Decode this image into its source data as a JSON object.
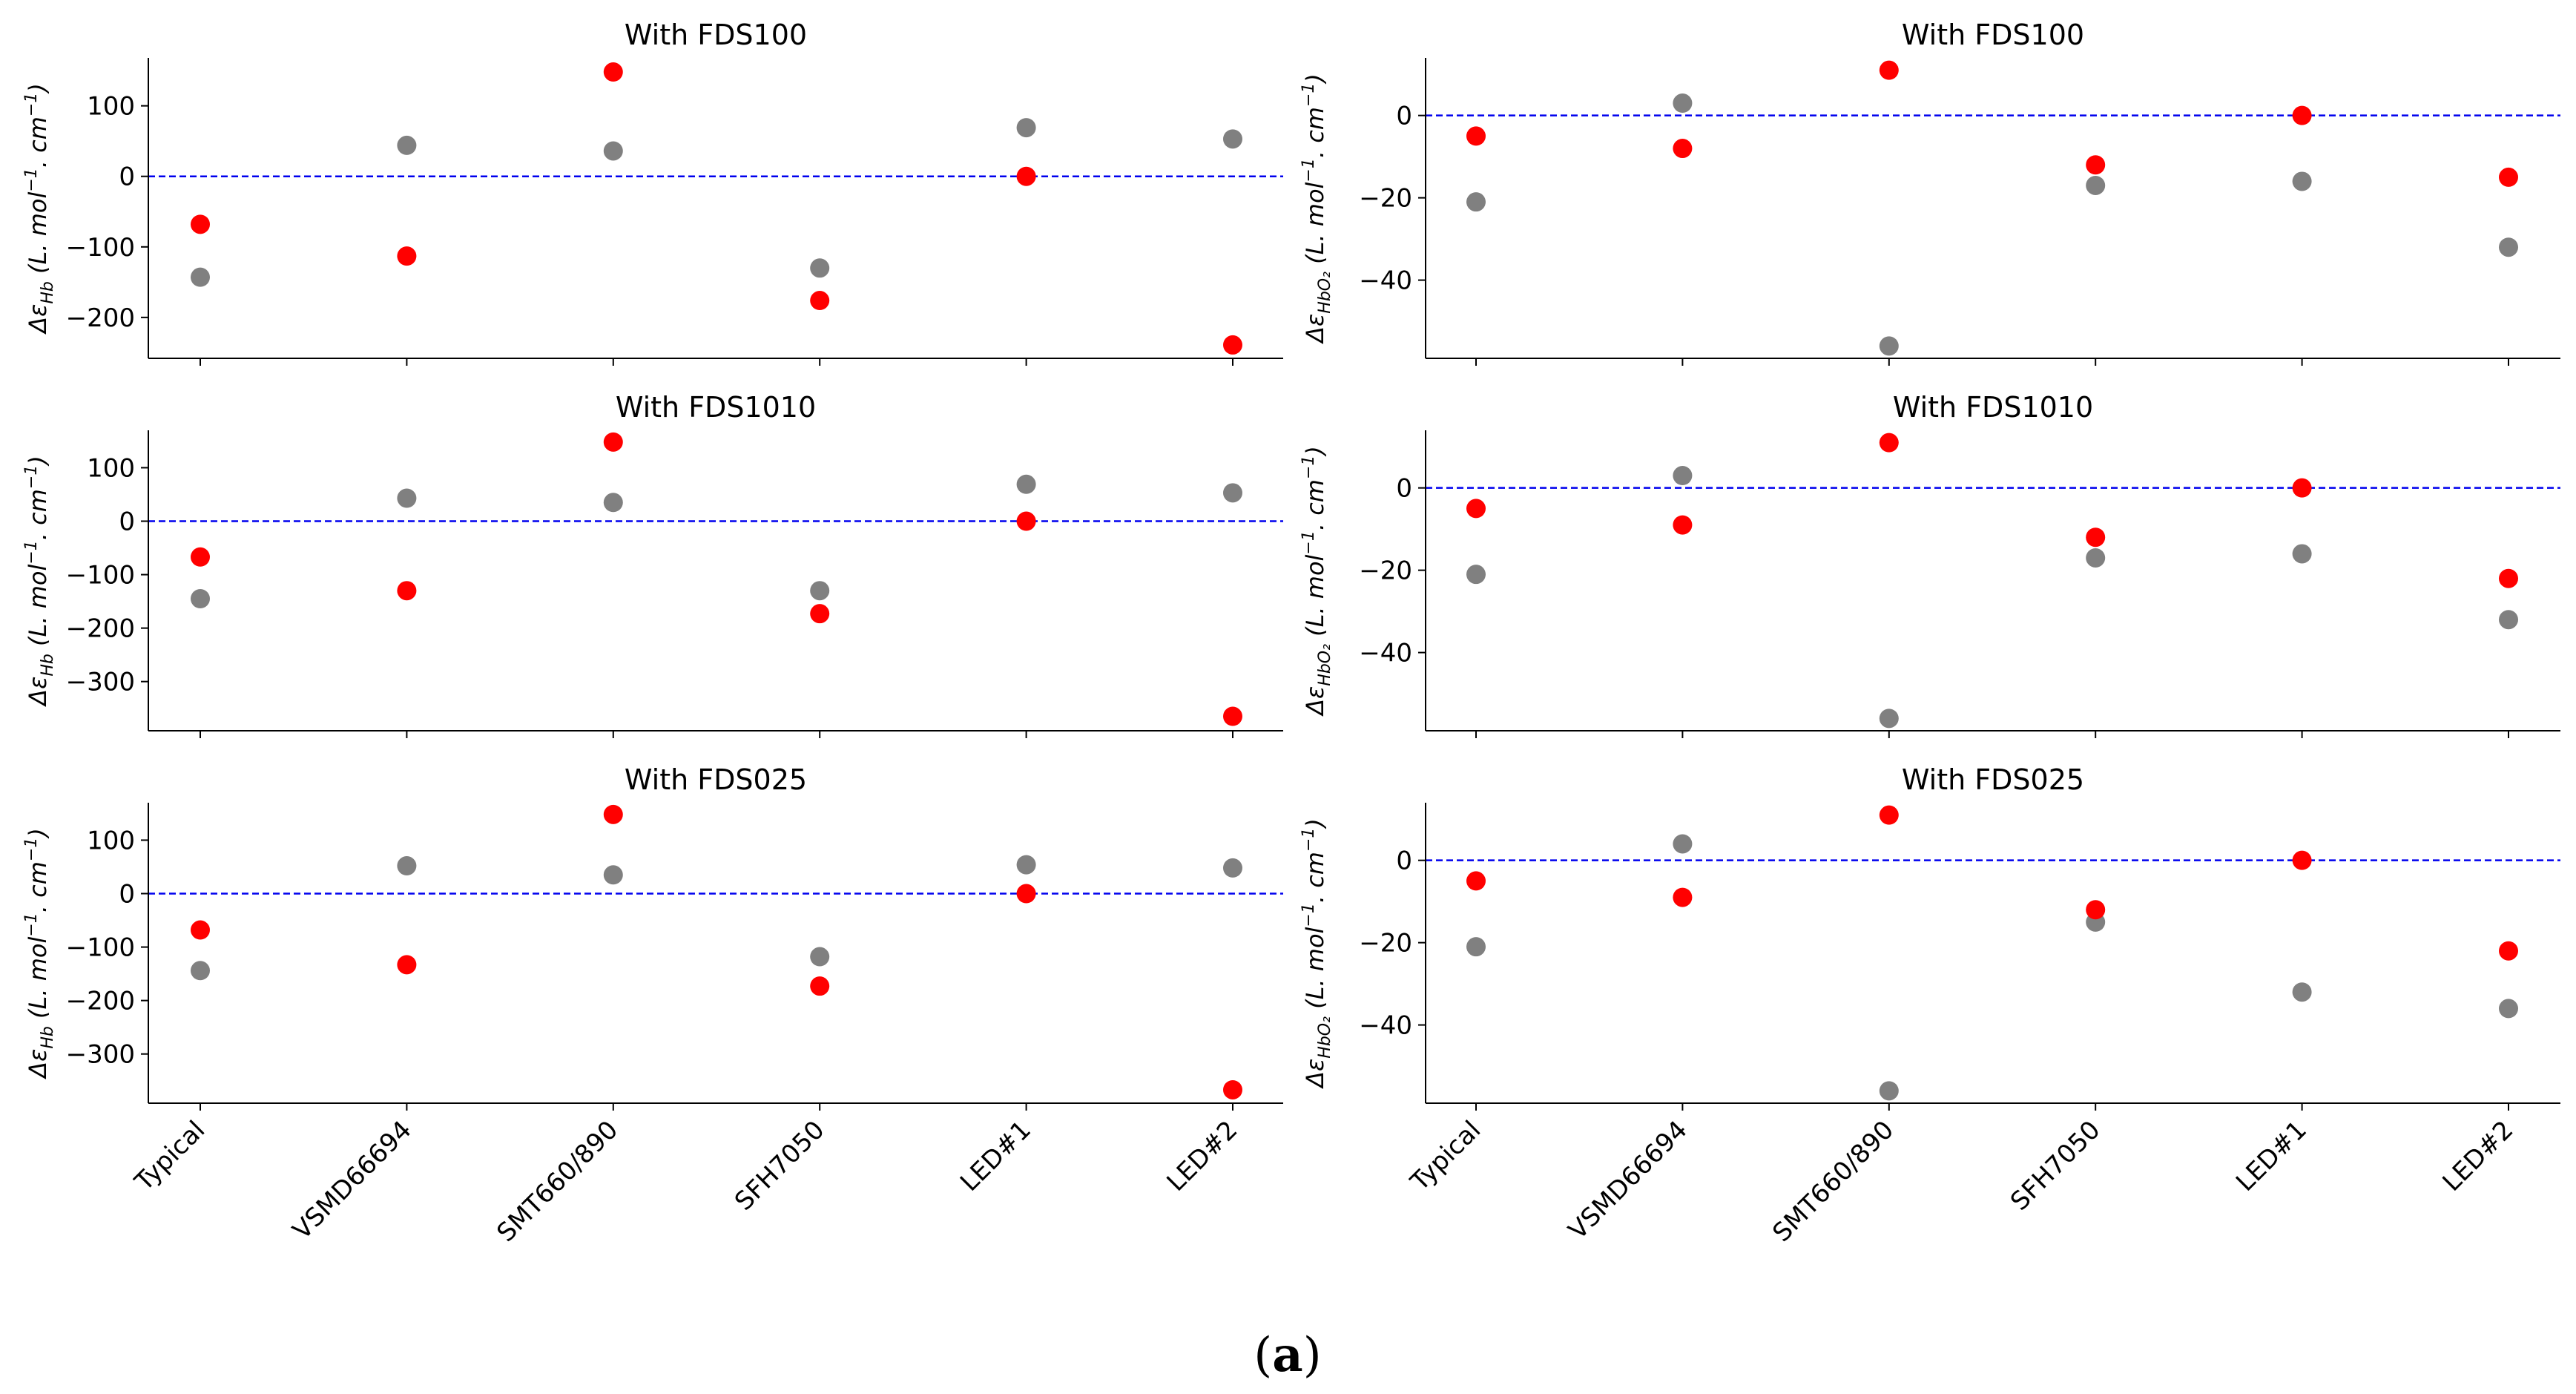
{
  "figure_caption": {
    "open": "(",
    "letter": "a",
    "close": ")"
  },
  "colors": {
    "series_ref": "#808080",
    "series_alt": "#ff0000",
    "zero_line": "#0000ee",
    "axis": "#000000"
  },
  "chart_data": [
    {
      "type": "scatter",
      "title": "With FDS100",
      "ylabel": {
        "symbol": "Δε",
        "sub": "Hb",
        "units_pre": "(L. mol",
        "sup1": "−1",
        "units_mid": ". cm",
        "sup2": "−1",
        "units_post": ")"
      },
      "categories": [
        "Typical",
        "VSMD66694",
        "SMT660/890",
        "SFH7050",
        "LED#1",
        "LED#2"
      ],
      "ylim": [
        -258,
        168
      ],
      "yticks": [
        100,
        0,
        -100,
        -200
      ],
      "series": [
        {
          "name": "grey",
          "color": "#808080",
          "values": [
            -143,
            44,
            36,
            -130,
            69,
            53
          ]
        },
        {
          "name": "red",
          "color": "#ff0000",
          "values": [
            -68,
            -113,
            148,
            -176,
            0,
            -239
          ]
        }
      ]
    },
    {
      "type": "scatter",
      "title": "With FDS100",
      "ylabel": {
        "symbol": "Δε",
        "sub": "HbO₂",
        "units_pre": "(L. mol",
        "sup1": "−1",
        "units_mid": ". cm",
        "sup2": "−1",
        "units_post": ")"
      },
      "categories": [
        "Typical",
        "VSMD66694",
        "SMT660/890",
        "SFH7050",
        "LED#1",
        "LED#2"
      ],
      "ylim": [
        -59,
        14
      ],
      "yticks": [
        0,
        -20,
        -40
      ],
      "series": [
        {
          "name": "grey",
          "color": "#808080",
          "values": [
            -21,
            3,
            -56,
            -17,
            -16,
            -32
          ]
        },
        {
          "name": "red",
          "color": "#ff0000",
          "values": [
            -5,
            -8,
            11,
            -12,
            0,
            -15
          ]
        }
      ]
    },
    {
      "type": "scatter",
      "title": "With FDS1010",
      "ylabel": {
        "symbol": "Δε",
        "sub": "Hb",
        "units_pre": "(L. mol",
        "sup1": "−1",
        "units_mid": ". cm",
        "sup2": "−1",
        "units_post": ")"
      },
      "categories": [
        "Typical",
        "VSMD66694",
        "SMT660/890",
        "SFH7050",
        "LED#1",
        "LED#2"
      ],
      "ylim": [
        -392,
        170
      ],
      "yticks": [
        100,
        0,
        -100,
        -200,
        -300
      ],
      "series": [
        {
          "name": "grey",
          "color": "#808080",
          "values": [
            -145,
            43,
            35,
            -130,
            69,
            53
          ]
        },
        {
          "name": "red",
          "color": "#ff0000",
          "values": [
            -67,
            -130,
            148,
            -173,
            0,
            -365
          ]
        }
      ]
    },
    {
      "type": "scatter",
      "title": "With FDS1010",
      "ylabel": {
        "symbol": "Δε",
        "sub": "HbO₂",
        "units_pre": "(L. mol",
        "sup1": "−1",
        "units_mid": ". cm",
        "sup2": "−1",
        "units_post": ")"
      },
      "categories": [
        "Typical",
        "VSMD66694",
        "SMT660/890",
        "SFH7050",
        "LED#1",
        "LED#2"
      ],
      "ylim": [
        -59,
        14
      ],
      "yticks": [
        0,
        -20,
        -40
      ],
      "series": [
        {
          "name": "grey",
          "color": "#808080",
          "values": [
            -21,
            3,
            -56,
            -17,
            -16,
            -32
          ]
        },
        {
          "name": "red",
          "color": "#ff0000",
          "values": [
            -5,
            -9,
            11,
            -12,
            0,
            -22
          ]
        }
      ]
    },
    {
      "type": "scatter",
      "title": "With FDS025",
      "ylabel": {
        "symbol": "Δε",
        "sub": "Hb",
        "units_pre": "(L. mol",
        "sup1": "−1",
        "units_mid": ". cm",
        "sup2": "−1",
        "units_post": ")"
      },
      "categories": [
        "Typical",
        "VSMD66694",
        "SMT660/890",
        "SFH7050",
        "LED#1",
        "LED#2"
      ],
      "ylim": [
        -392,
        170
      ],
      "yticks": [
        100,
        0,
        -100,
        -200,
        -300
      ],
      "series": [
        {
          "name": "grey",
          "color": "#808080",
          "values": [
            -144,
            52,
            35,
            -118,
            54,
            48
          ]
        },
        {
          "name": "red",
          "color": "#ff0000",
          "values": [
            -68,
            -133,
            148,
            -173,
            0,
            -367
          ]
        }
      ]
    },
    {
      "type": "scatter",
      "title": "With FDS025",
      "ylabel": {
        "symbol": "Δε",
        "sub": "HbO₂",
        "units_pre": "(L. mol",
        "sup1": "−1",
        "units_mid": ". cm",
        "sup2": "−1",
        "units_post": ")"
      },
      "categories": [
        "Typical",
        "VSMD66694",
        "SMT660/890",
        "SFH7050",
        "LED#1",
        "LED#2"
      ],
      "ylim": [
        -59,
        14
      ],
      "yticks": [
        0,
        -20,
        -40
      ],
      "series": [
        {
          "name": "grey",
          "color": "#808080",
          "values": [
            -21,
            4,
            -56,
            -15,
            -32,
            -36
          ]
        },
        {
          "name": "red",
          "color": "#ff0000",
          "values": [
            -5,
            -9,
            11,
            -12,
            0,
            -22
          ]
        }
      ]
    }
  ]
}
